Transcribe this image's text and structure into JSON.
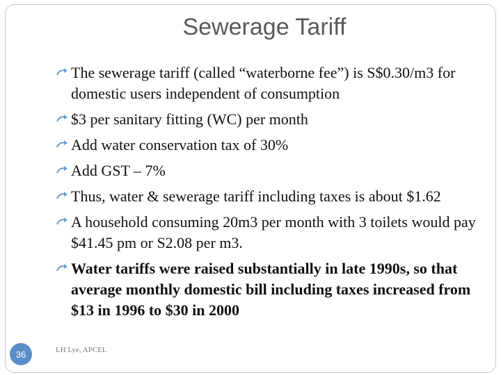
{
  "slide": {
    "title": "Sewerage Tariff",
    "bullets": [
      "The sewerage tariff (called “waterborne fee”) is S$0.30/m3 for domestic users independent of consumption",
      "$3 per sanitary fitting (WC) per month",
      "Add water conservation tax of 30%",
      "Add GST – 7%",
      "Thus, water & sewerage tariff  including taxes is about $1.62",
      "A household consuming 20m3  per month with 3 toilets would pay $41.45 pm or S2.08 per m3.",
      "Water tariffs were raised substantially in  late 1990s, so that average monthly domestic bill including taxes increased from $13 in 1996 to $30 in 2000"
    ],
    "slide_number": "36",
    "footer": "LH Lye, APCEL"
  },
  "colors": {
    "bullet_icon": "#6c9bd2",
    "slide_number_bg": "#5b8ec9",
    "title": "#595959"
  },
  "icons": {
    "bullet": "curved-arrow-icon"
  }
}
